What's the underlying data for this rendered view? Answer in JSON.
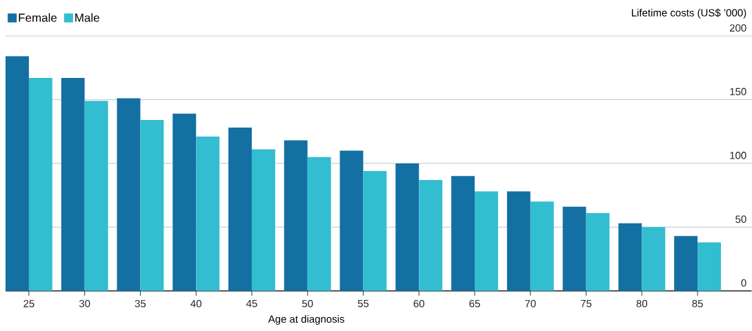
{
  "chart_data": {
    "type": "bar",
    "xlabel": "Age at diagnosis",
    "ylabel": "Lifetime costs (US$ ’000)",
    "categories": [
      "25",
      "30",
      "35",
      "40",
      "45",
      "50",
      "55",
      "60",
      "65",
      "70",
      "75",
      "80",
      "85"
    ],
    "series": [
      {
        "name": "Female",
        "color": "#1470a3",
        "values": [
          184,
          167,
          151,
          139,
          128,
          118,
          110,
          100,
          90,
          78,
          66,
          53,
          43
        ]
      },
      {
        "name": "Male",
        "color": "#33bdd0",
        "values": [
          167,
          149,
          134,
          121,
          111,
          105,
          94,
          87,
          78,
          70,
          61,
          50,
          38
        ]
      }
    ],
    "ylim": [
      0,
      200
    ],
    "yticks": [
      0,
      50,
      100,
      150,
      200
    ],
    "grid": "y",
    "legend": "top left"
  }
}
